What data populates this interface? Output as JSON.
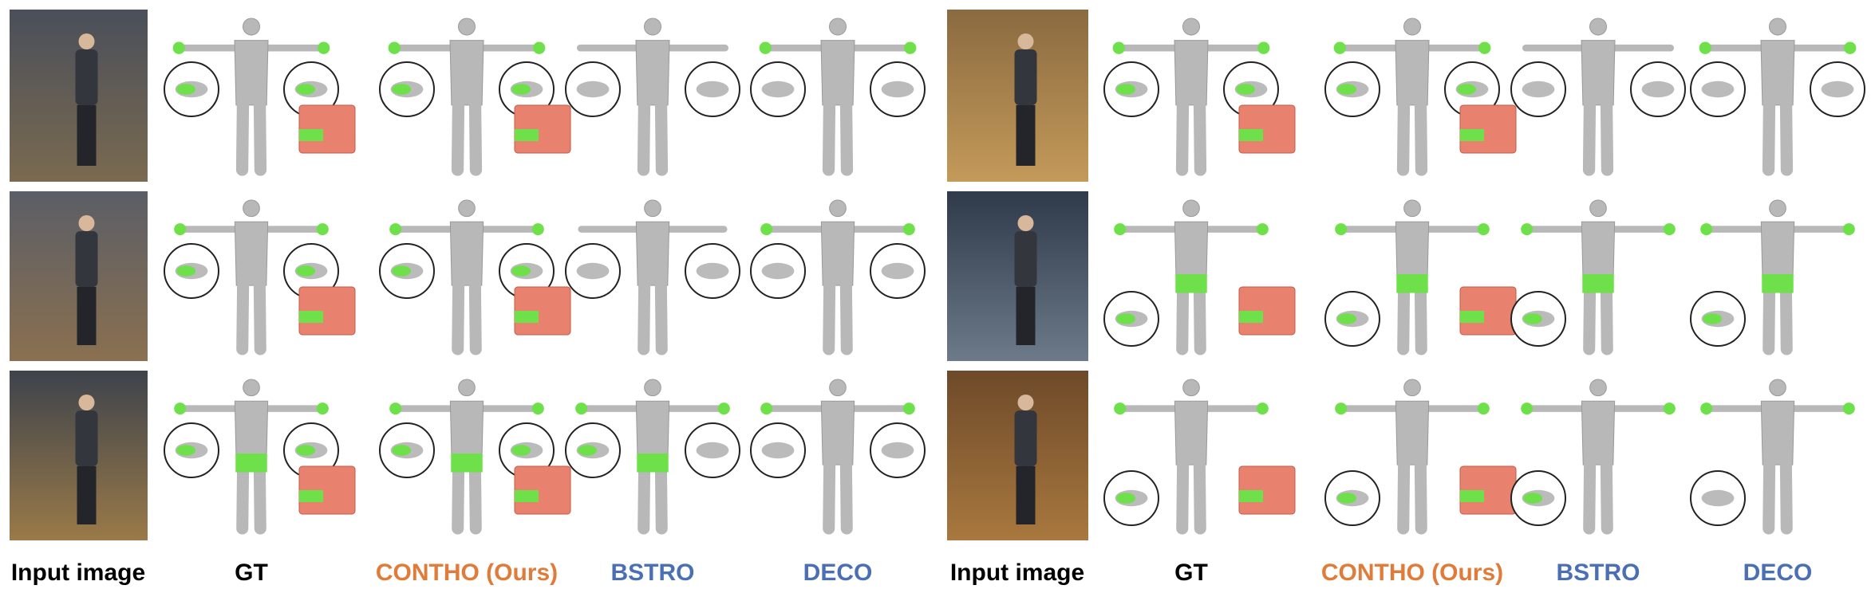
{
  "panels": [
    {
      "columns": [
        {
          "label": "Input image"
        },
        {
          "label": "GT"
        },
        {
          "label": "CONTHO (Ours)"
        },
        {
          "label": "BSTRO"
        },
        {
          "label": "DECO"
        }
      ]
    },
    {
      "columns": [
        {
          "label": "Input image"
        },
        {
          "label": "GT"
        },
        {
          "label": "CONTHO (Ours)"
        },
        {
          "label": "BSTRO"
        },
        {
          "label": "DECO"
        }
      ]
    }
  ]
}
